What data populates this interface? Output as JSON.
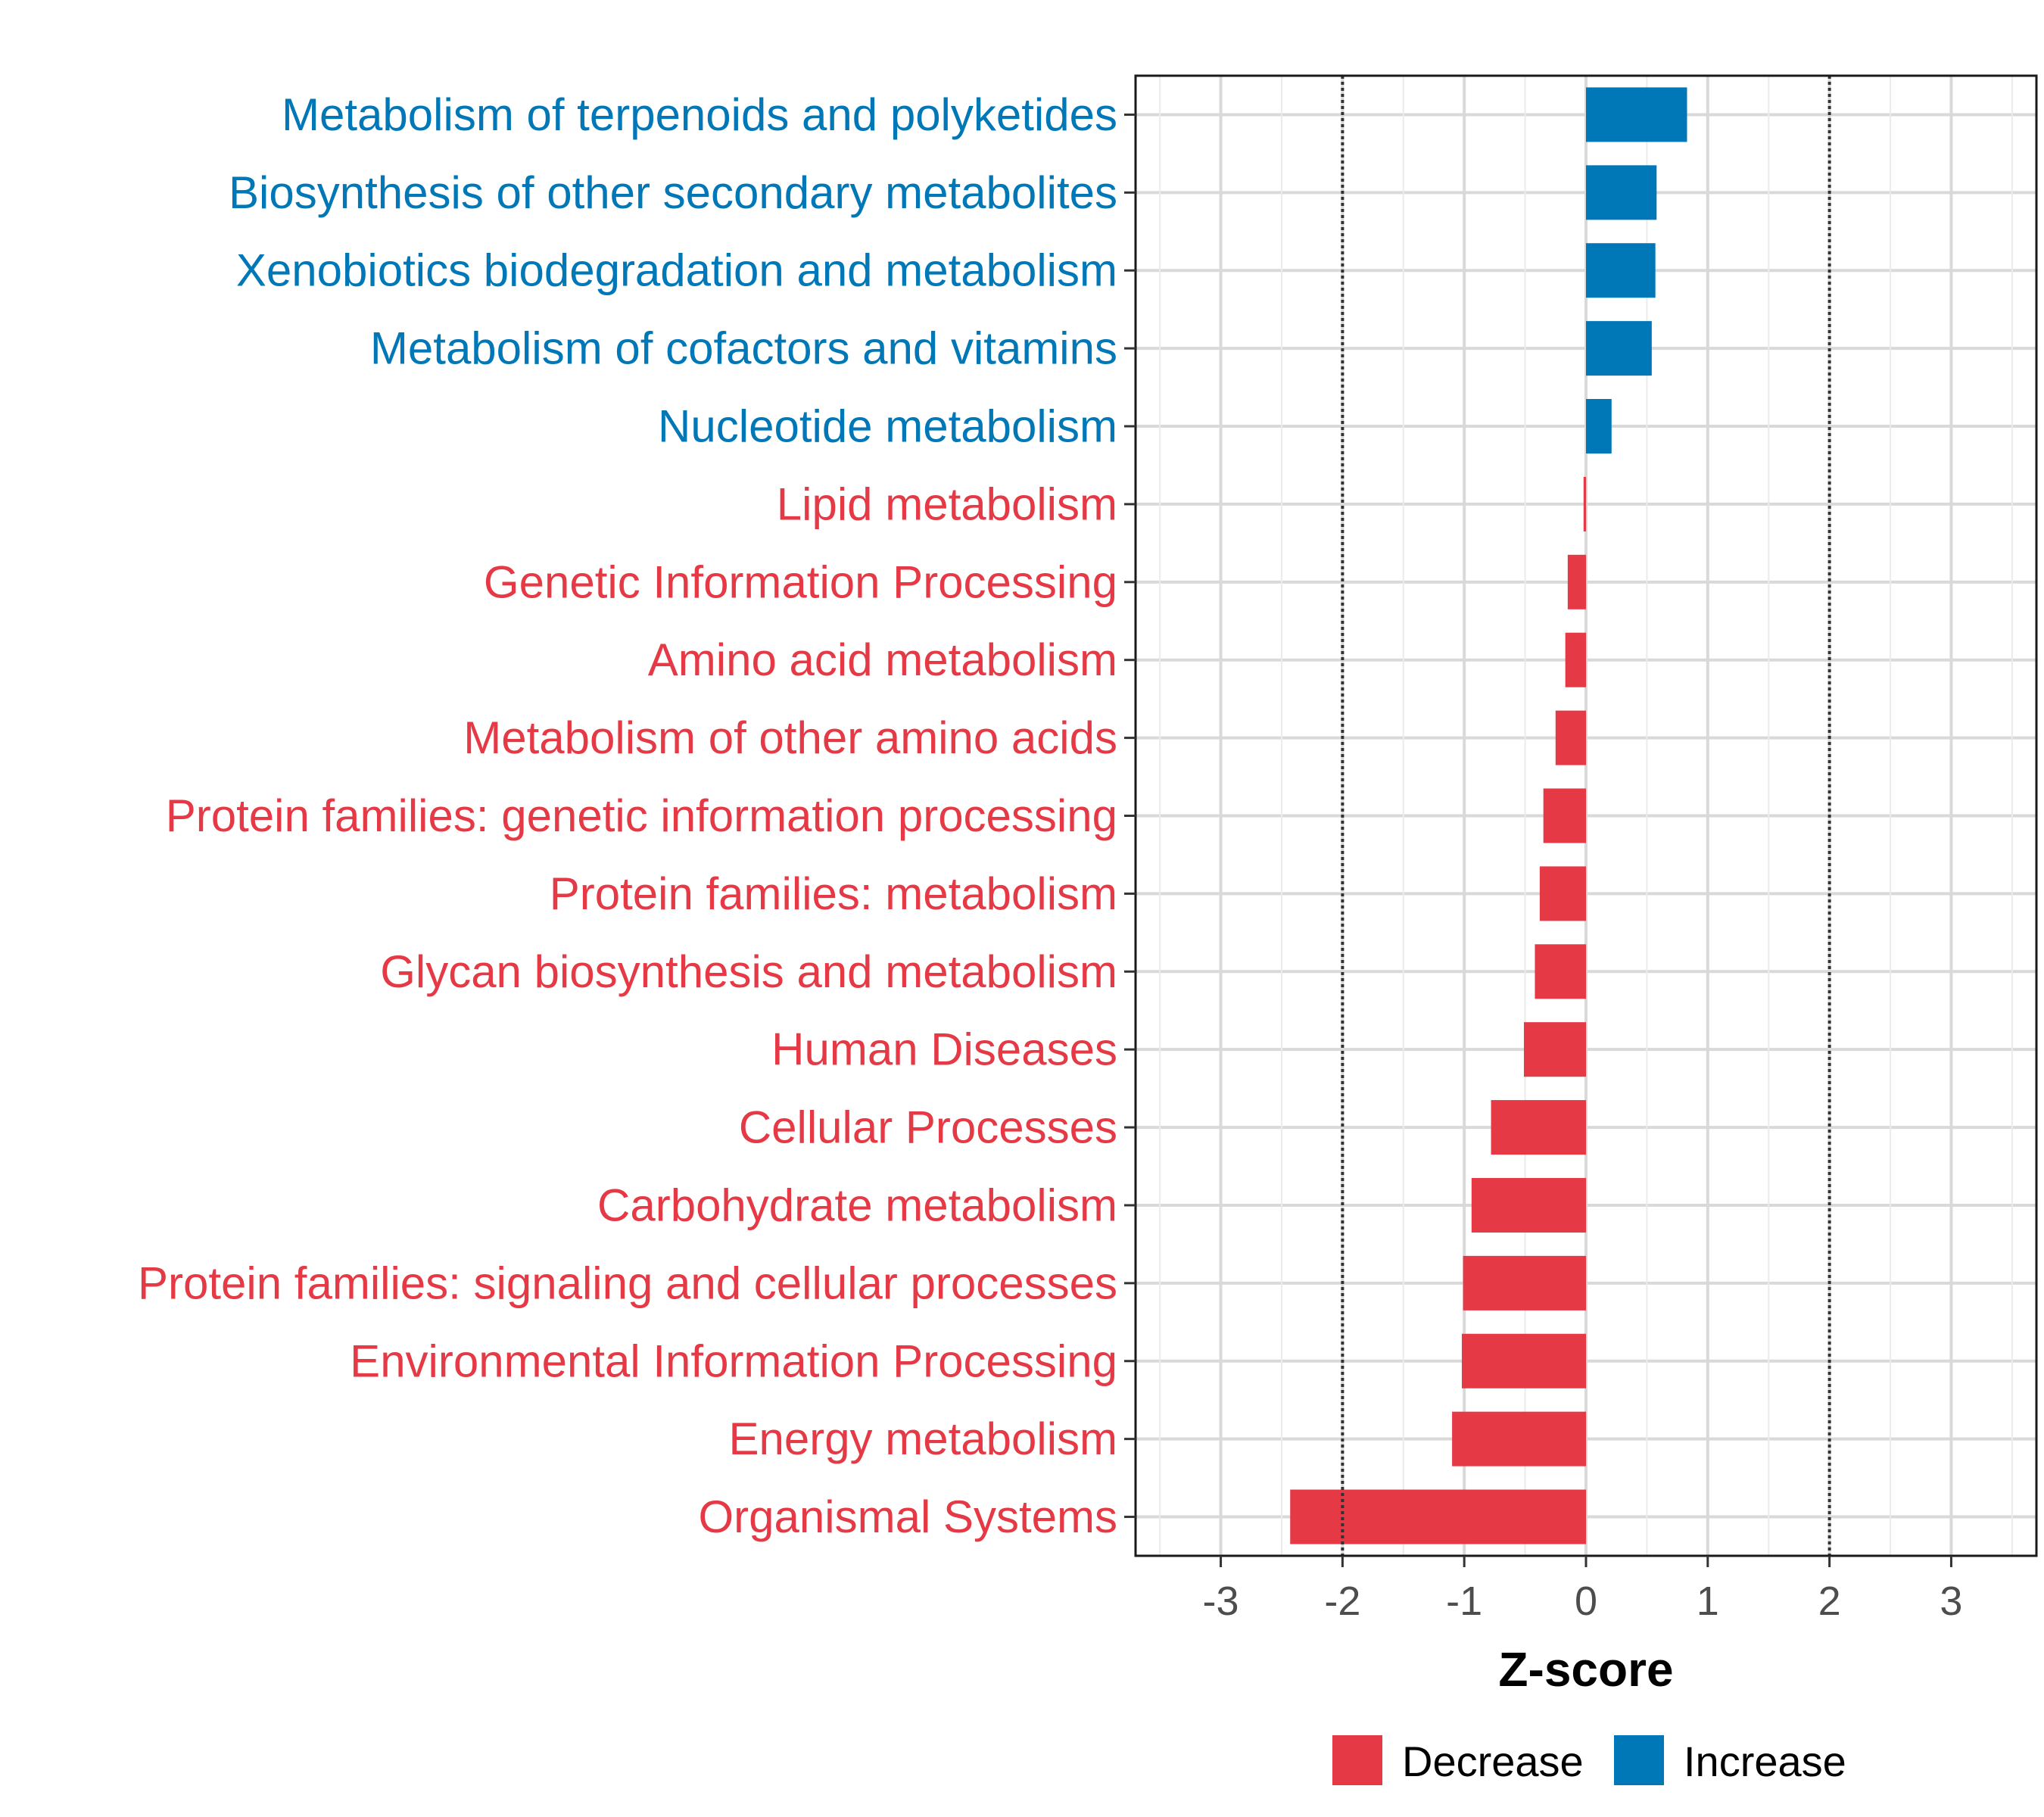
{
  "chart_data": {
    "type": "bar",
    "orientation": "horizontal",
    "xlabel": "Z-score",
    "ylabel": "",
    "xlim": [
      -3.7,
      3.7
    ],
    "xticks": [
      -3,
      -2,
      -1,
      0,
      1,
      2,
      3
    ],
    "xtick_labels": [
      "-3",
      "-2",
      "-1",
      "0",
      "1",
      "2",
      "3"
    ],
    "reference_lines": [
      -2,
      2
    ],
    "grid": true,
    "colors": {
      "Decrease": "#e63946",
      "Increase": "#0077b6"
    },
    "categories": [
      "Metabolism of terpenoids and polyketides",
      "Biosynthesis of other secondary metabolites",
      "Xenobiotics biodegradation and metabolism",
      "Metabolism of cofactors and vitamins",
      "Nucleotide metabolism",
      "Lipid metabolism",
      "Genetic Information Processing",
      "Amino acid metabolism",
      "Metabolism of other amino acids",
      "Protein families: genetic information processing",
      "Protein families: metabolism",
      "Glycan biosynthesis and metabolism",
      "Human Diseases",
      "Cellular Processes",
      "Carbohydrate metabolism",
      "Protein families: signaling and cellular processes",
      "Environmental Information Processing",
      "Energy metabolism",
      "Organismal Systems"
    ],
    "values": [
      0.83,
      0.58,
      0.57,
      0.54,
      0.21,
      -0.02,
      -0.15,
      -0.17,
      -0.25,
      -0.35,
      -0.38,
      -0.42,
      -0.51,
      -0.78,
      -0.94,
      -1.01,
      -1.02,
      -1.1,
      -2.43
    ],
    "groups": [
      "Increase",
      "Increase",
      "Increase",
      "Increase",
      "Increase",
      "Decrease",
      "Decrease",
      "Decrease",
      "Decrease",
      "Decrease",
      "Decrease",
      "Decrease",
      "Decrease",
      "Decrease",
      "Decrease",
      "Decrease",
      "Decrease",
      "Decrease",
      "Decrease"
    ],
    "legend": {
      "position": "bottom",
      "entries": [
        "Decrease",
        "Increase"
      ]
    }
  }
}
